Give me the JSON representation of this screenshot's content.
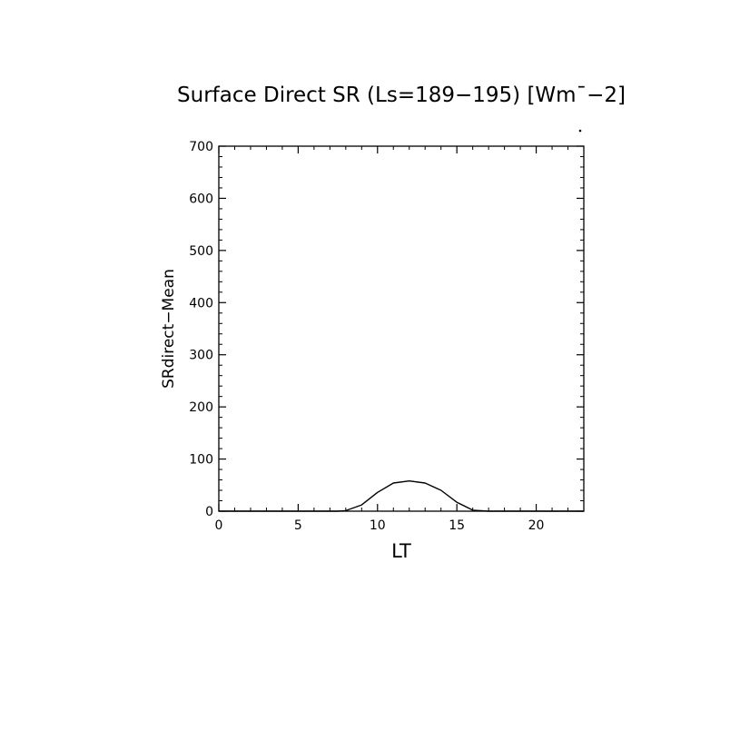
{
  "chart_data": {
    "type": "line",
    "title": "Surface Direct SR (Ls=189−195) [Wm¯−2]",
    "xlabel": "LT",
    "ylabel": "SRdirect−Mean",
    "xlim": [
      0,
      23
    ],
    "ylim": [
      0,
      700
    ],
    "x_ticks": [
      0,
      5,
      10,
      15,
      20
    ],
    "y_ticks": [
      0,
      100,
      200,
      300,
      400,
      500,
      600,
      700
    ],
    "grid": false,
    "series": [
      {
        "x": [
          0,
          1,
          2,
          3,
          4,
          5,
          6,
          7,
          7.5,
          8,
          9,
          10,
          11,
          12,
          13,
          14,
          15,
          16,
          17,
          18,
          19,
          20,
          21,
          22,
          23
        ],
        "values": [
          0,
          0,
          0,
          0,
          0,
          0,
          0,
          0,
          0,
          1,
          12,
          36,
          54,
          58,
          54,
          40,
          17,
          2,
          0,
          0,
          0,
          0,
          0,
          0,
          0
        ]
      }
    ],
    "colors": {
      "axes": "#000000",
      "line": "#000000",
      "background": "#ffffff"
    }
  }
}
